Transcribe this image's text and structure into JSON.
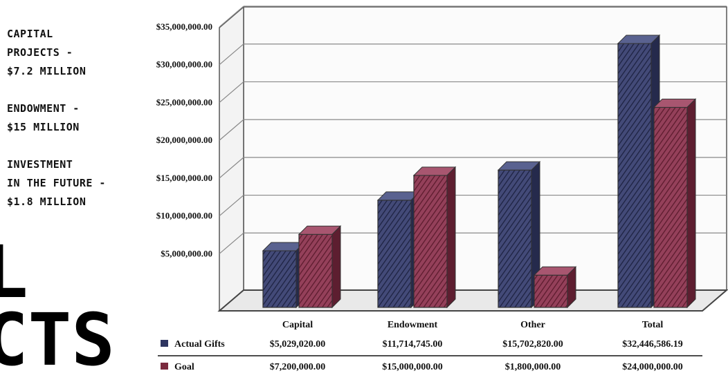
{
  "left_panel": {
    "items": [
      "Capital\nProjects -\n$7.2 Million",
      "Endowment -\n$15 Million",
      "Investment\nin the future -\n$1.8 Million"
    ],
    "big_text": "L\nCTS"
  },
  "chart_data": {
    "type": "bar",
    "categories": [
      "Capital",
      "Endowment",
      "Other",
      "Total"
    ],
    "series": [
      {
        "name": "Actual Gifts",
        "values": [
          5029020.0,
          11714745.0,
          15702820.0,
          32446586.19
        ],
        "value_labels": [
          "$5,029,020.00",
          "$11,714,745.00",
          "$15,702,820.00",
          "$32,446,586.19"
        ],
        "color": "#2e3560"
      },
      {
        "name": "Goal",
        "values": [
          7200000.0,
          15000000.0,
          1800000.0,
          24000000.0
        ],
        "value_labels": [
          "$7,200,000.00",
          "$15,000,000.00",
          "$1,800,000.00",
          "$24,000,000.00"
        ],
        "color": "#7a2a3e"
      }
    ],
    "y_ticks": [
      5000000,
      10000000,
      15000000,
      20000000,
      25000000,
      30000000,
      35000000
    ],
    "y_tick_labels": [
      "$5,000,000.00",
      "$10,000,000.00",
      "$15,000,000.00",
      "$20,000,000.00",
      "$25,000,000.00",
      "$30,000,000.00",
      "$35,000,000.00"
    ],
    "ylim": [
      0,
      35000000
    ],
    "grid": true,
    "style": "3d-sketch",
    "legend": "data-table-below"
  }
}
